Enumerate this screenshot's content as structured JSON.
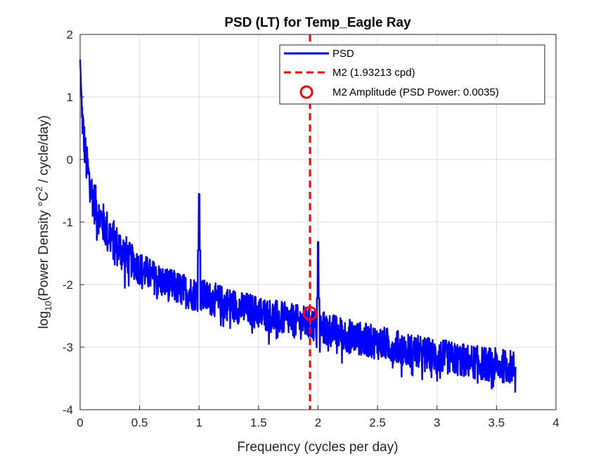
{
  "chart_data": {
    "type": "line",
    "title": "PSD (LT) for Temp_Eagle Ray",
    "xlabel": "Frequency (cycles per day)",
    "ylabel": {
      "prefix": "log",
      "sub": "10",
      "mid": "(Power Density °C",
      "sup": "2",
      "suffix": " / cycle/day)"
    },
    "xlim": [
      0,
      4
    ],
    "ylim": [
      -4,
      2
    ],
    "xticks": [
      "0",
      "0.5",
      "1",
      "1.5",
      "2",
      "2.5",
      "3",
      "3.5",
      "4"
    ],
    "yticks": [
      "-4",
      "-3",
      "-2",
      "-1",
      "0",
      "1",
      "2"
    ],
    "grid": true,
    "legend_position": "top-right",
    "series": [
      {
        "name": "PSD",
        "color": "#0000ff",
        "style": "solid",
        "x_range": [
          0,
          3.66
        ],
        "trend_points": [
          [
            0.0,
            1.6
          ],
          [
            0.01,
            1.05
          ],
          [
            0.02,
            0.72
          ],
          [
            0.03,
            0.45
          ],
          [
            0.05,
            0.05
          ],
          [
            0.08,
            -0.3
          ],
          [
            0.12,
            -0.62
          ],
          [
            0.2,
            -0.97
          ],
          [
            0.3,
            -1.27
          ],
          [
            0.4,
            -1.5
          ],
          [
            0.5,
            -1.67
          ],
          [
            0.6,
            -1.8
          ],
          [
            0.7,
            -1.9
          ],
          [
            0.8,
            -1.98
          ],
          [
            0.9,
            -2.05
          ],
          [
            1.0,
            -2.1
          ],
          [
            1.2,
            -2.22
          ],
          [
            1.4,
            -2.33
          ],
          [
            1.6,
            -2.43
          ],
          [
            1.8,
            -2.52
          ],
          [
            1.9,
            -2.55
          ],
          [
            2.0,
            -2.6
          ],
          [
            2.2,
            -2.72
          ],
          [
            2.4,
            -2.82
          ],
          [
            2.6,
            -2.9
          ],
          [
            2.8,
            -3.0
          ],
          [
            3.0,
            -3.07
          ],
          [
            3.2,
            -3.14
          ],
          [
            3.4,
            -3.2
          ],
          [
            3.66,
            -3.26
          ]
        ],
        "peaks": [
          {
            "x": 1.0,
            "y": -0.55
          },
          {
            "x": 2.0,
            "y": -1.32
          }
        ]
      },
      {
        "name": "M2 (1.93213 cpd)",
        "color": "#ff0000",
        "style": "dashed",
        "x": 1.93213
      },
      {
        "name": "M2 Amplitude (PSD Power: 0.0035)",
        "color": "#ff0000",
        "style": "circle",
        "x": 1.93213,
        "y": -2.46
      }
    ]
  }
}
